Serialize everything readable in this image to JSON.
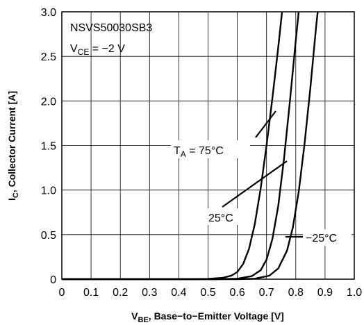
{
  "chart_data": {
    "type": "line",
    "title": "NSVS50030SB3",
    "condition": {
      "main": "V",
      "sub": "CE",
      "rest": " = −2 V"
    },
    "xlabel": {
      "main": "V",
      "sub": "BE",
      "rest": ", Base−to−Emitter Voltage [V]"
    },
    "ylabel": {
      "main": "I",
      "sub": "C",
      "rest": ", Collector Current [A]"
    },
    "xlim": [
      0,
      1.0
    ],
    "ylim": [
      0,
      3.0
    ],
    "x_ticks": [
      "0",
      "0.1",
      "0.2",
      "0.3",
      "0.4",
      "0.5",
      "0.6",
      "0.7",
      "0.8",
      "0.9",
      "1.0"
    ],
    "y_ticks": [
      "0",
      "0.5",
      "1.0",
      "1.5",
      "2.0",
      "2.5",
      "3.0"
    ],
    "grid": true,
    "series": [
      {
        "name": "T_A = 75°C",
        "points": [
          [
            0,
            0
          ],
          [
            0.45,
            0
          ],
          [
            0.5,
            0.003
          ],
          [
            0.55,
            0.015
          ],
          [
            0.58,
            0.04
          ],
          [
            0.6,
            0.08
          ],
          [
            0.62,
            0.17
          ],
          [
            0.64,
            0.34
          ],
          [
            0.66,
            0.62
          ],
          [
            0.68,
            1.02
          ],
          [
            0.7,
            1.5
          ],
          [
            0.72,
            2.03
          ],
          [
            0.74,
            2.6
          ],
          [
            0.753,
            3.0
          ]
        ]
      },
      {
        "name": "25°C",
        "points": [
          [
            0,
            0
          ],
          [
            0.53,
            0
          ],
          [
            0.6,
            0.005
          ],
          [
            0.65,
            0.035
          ],
          [
            0.68,
            0.1
          ],
          [
            0.7,
            0.22
          ],
          [
            0.72,
            0.45
          ],
          [
            0.74,
            0.82
          ],
          [
            0.76,
            1.36
          ],
          [
            0.78,
            2.0
          ],
          [
            0.8,
            2.68
          ],
          [
            0.81,
            3.0
          ]
        ]
      },
      {
        "name": "−25°C",
        "points": [
          [
            0,
            0
          ],
          [
            0.6,
            0
          ],
          [
            0.66,
            0.005
          ],
          [
            0.71,
            0.04
          ],
          [
            0.74,
            0.12
          ],
          [
            0.77,
            0.32
          ],
          [
            0.79,
            0.58
          ],
          [
            0.81,
            0.98
          ],
          [
            0.83,
            1.52
          ],
          [
            0.85,
            2.15
          ],
          [
            0.87,
            2.85
          ],
          [
            0.875,
            3.0
          ]
        ]
      }
    ],
    "annotations": {
      "t75": {
        "main": "T",
        "sub": "A",
        "rest": " = 75°C"
      },
      "t25": "25°C",
      "tm25": "−25°C"
    }
  }
}
